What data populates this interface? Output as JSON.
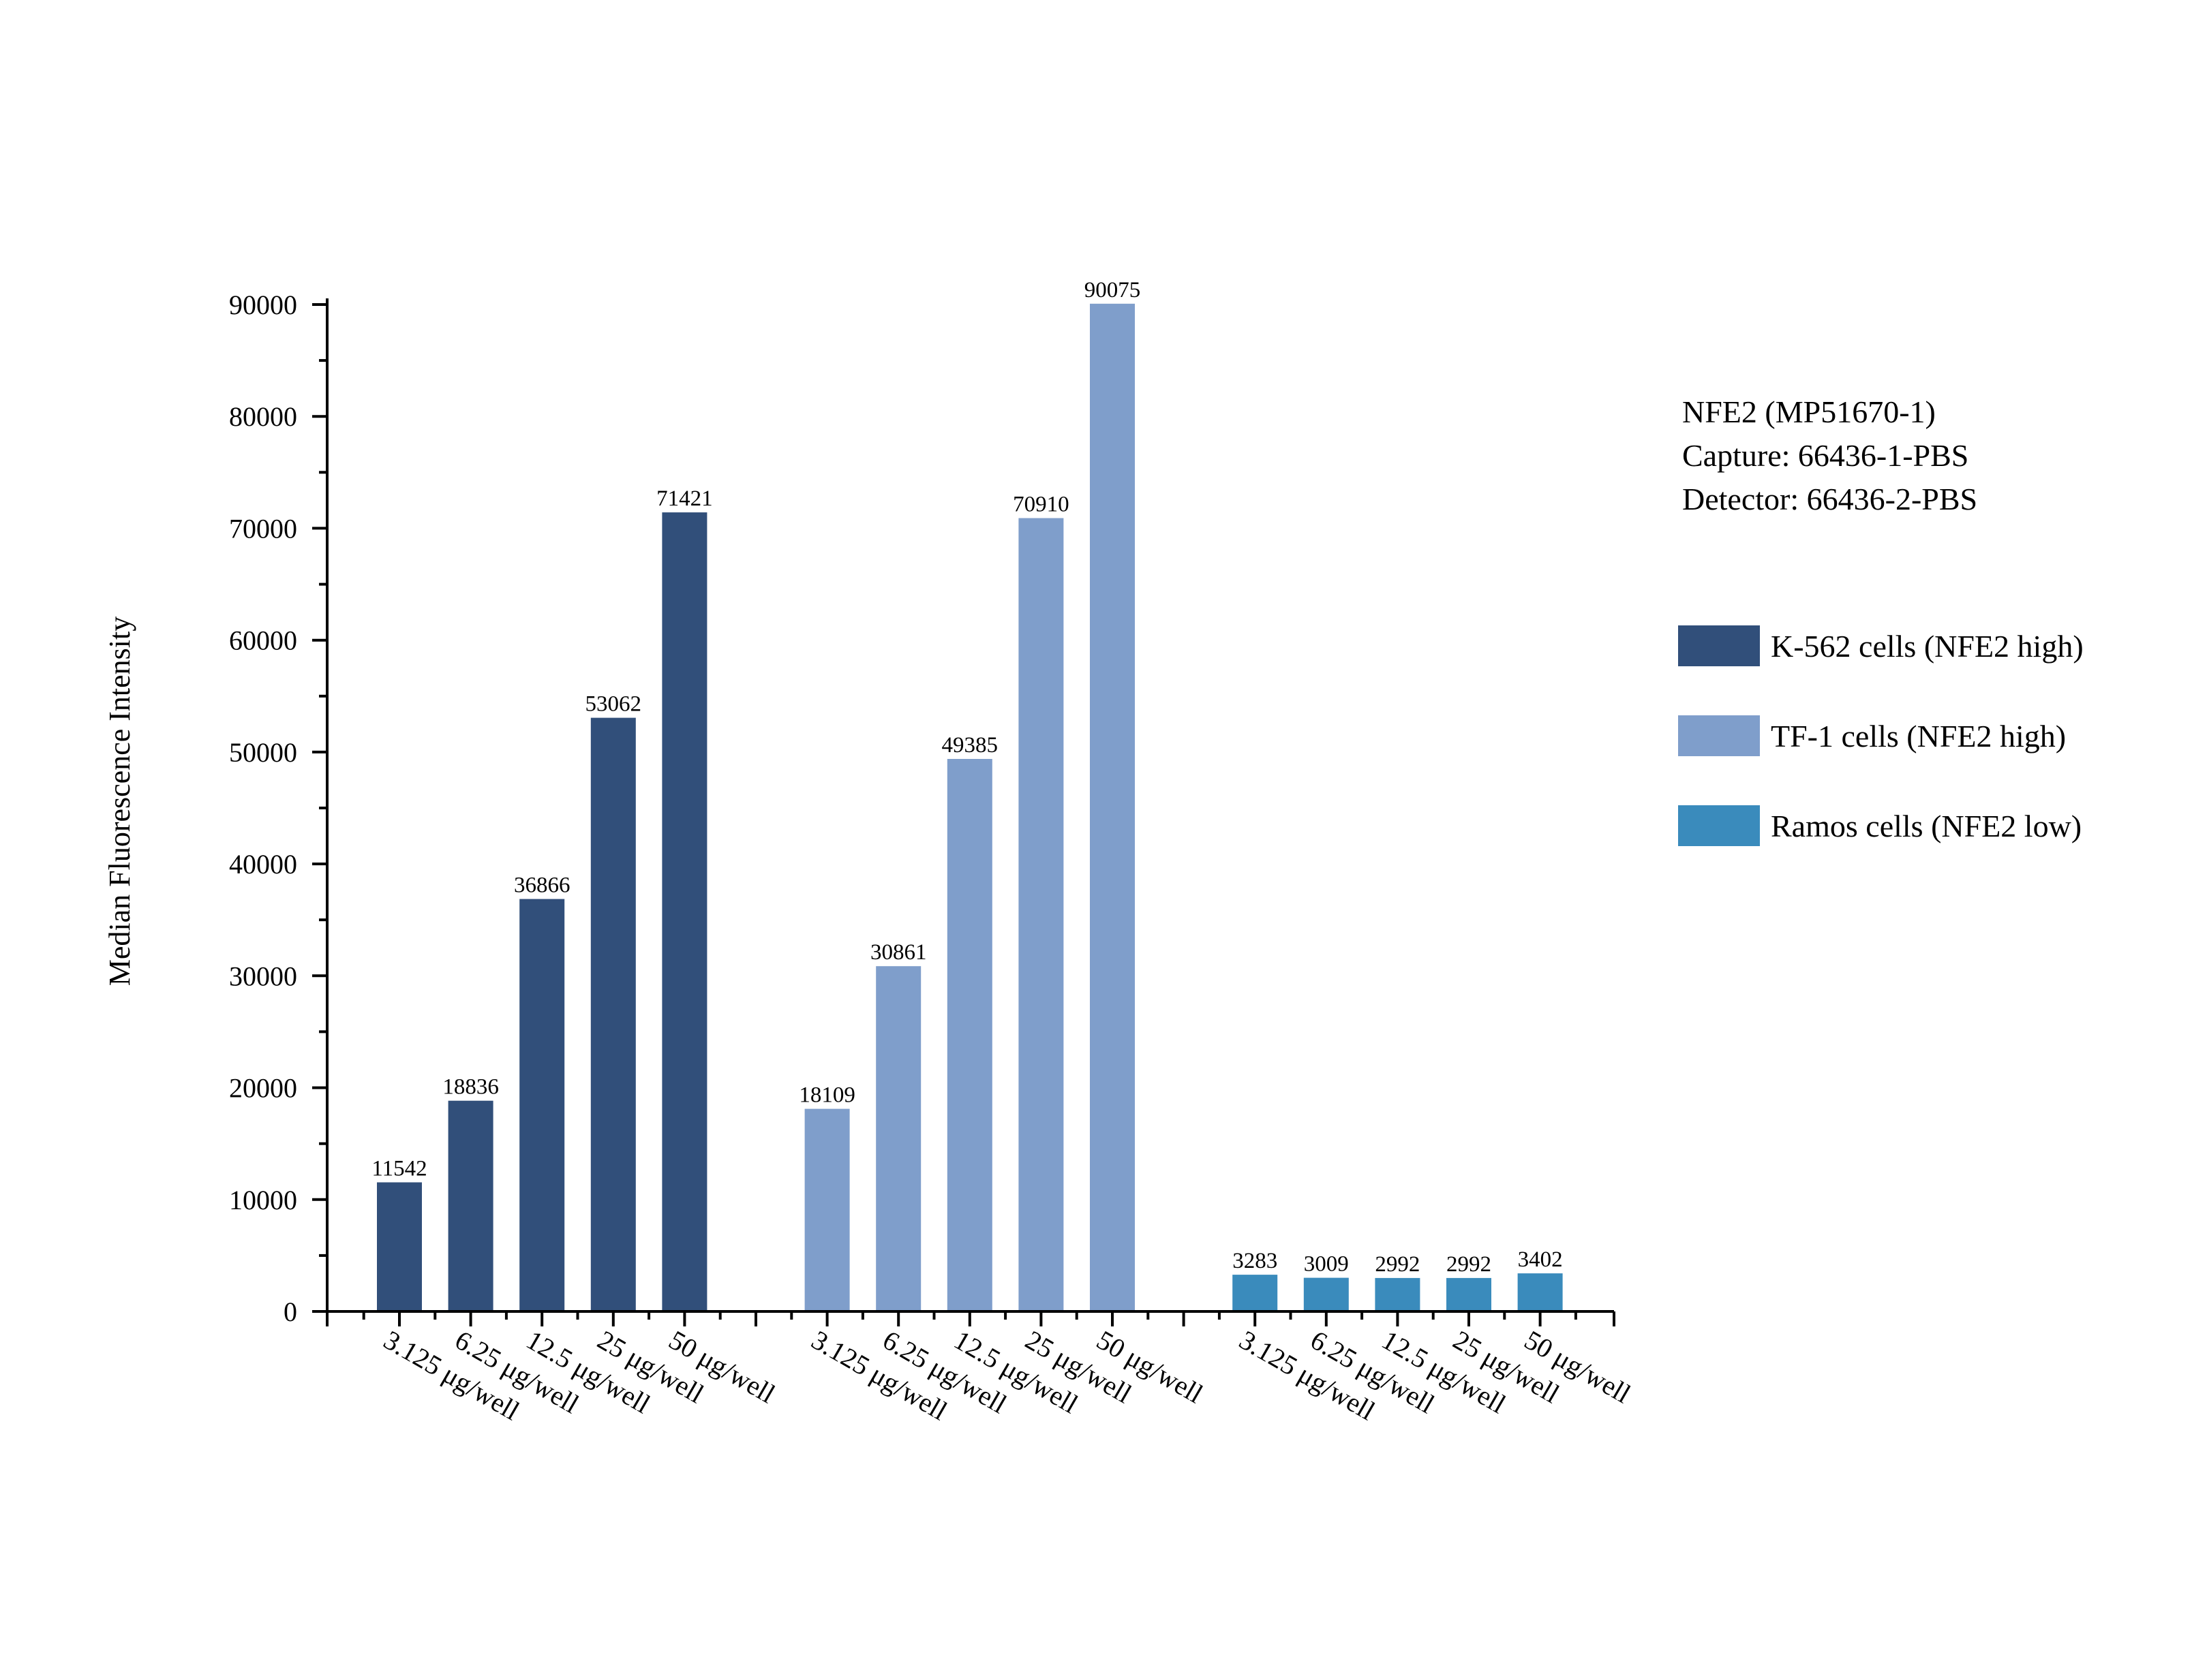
{
  "chart_data": {
    "type": "bar",
    "title": "",
    "xlabel": "",
    "ylabel": "Median Fluorescence Intensity",
    "ylim": [
      0,
      90000
    ],
    "yticks": [
      0,
      10000,
      20000,
      30000,
      40000,
      50000,
      60000,
      70000,
      80000,
      90000
    ],
    "grid": false,
    "legend_position": "right",
    "info_lines": [
      "NFE2 (MP51670-1)",
      "Capture: 66436-1-PBS",
      "Detector: 66436-2-PBS"
    ],
    "groups": [
      {
        "name": "K-562 cells (NFE2 high)",
        "color": "#314f7a",
        "categories": [
          "3.125 μg/well",
          "6.25 μg/well",
          "12.5 μg/well",
          "25 μg/well",
          "50 μg/well"
        ],
        "values": [
          11542,
          18836,
          36866,
          53062,
          71421
        ]
      },
      {
        "name": "TF-1 cells (NFE2 high)",
        "color": "#7f9ecb",
        "categories": [
          "3.125 μg/well",
          "6.25 μg/well",
          "12.5 μg/well",
          "25 μg/well",
          "50 μg/well"
        ],
        "values": [
          18109,
          30861,
          49385,
          70910,
          90075
        ]
      },
      {
        "name": "Ramos cells (NFE2 low)",
        "color": "#3a8bbc",
        "categories": [
          "3.125 μg/well",
          "6.25 μg/well",
          "12.5 μg/well",
          "25 μg/well",
          "50 μg/well"
        ],
        "values": [
          3283,
          3009,
          2992,
          2992,
          3402
        ]
      }
    ]
  }
}
